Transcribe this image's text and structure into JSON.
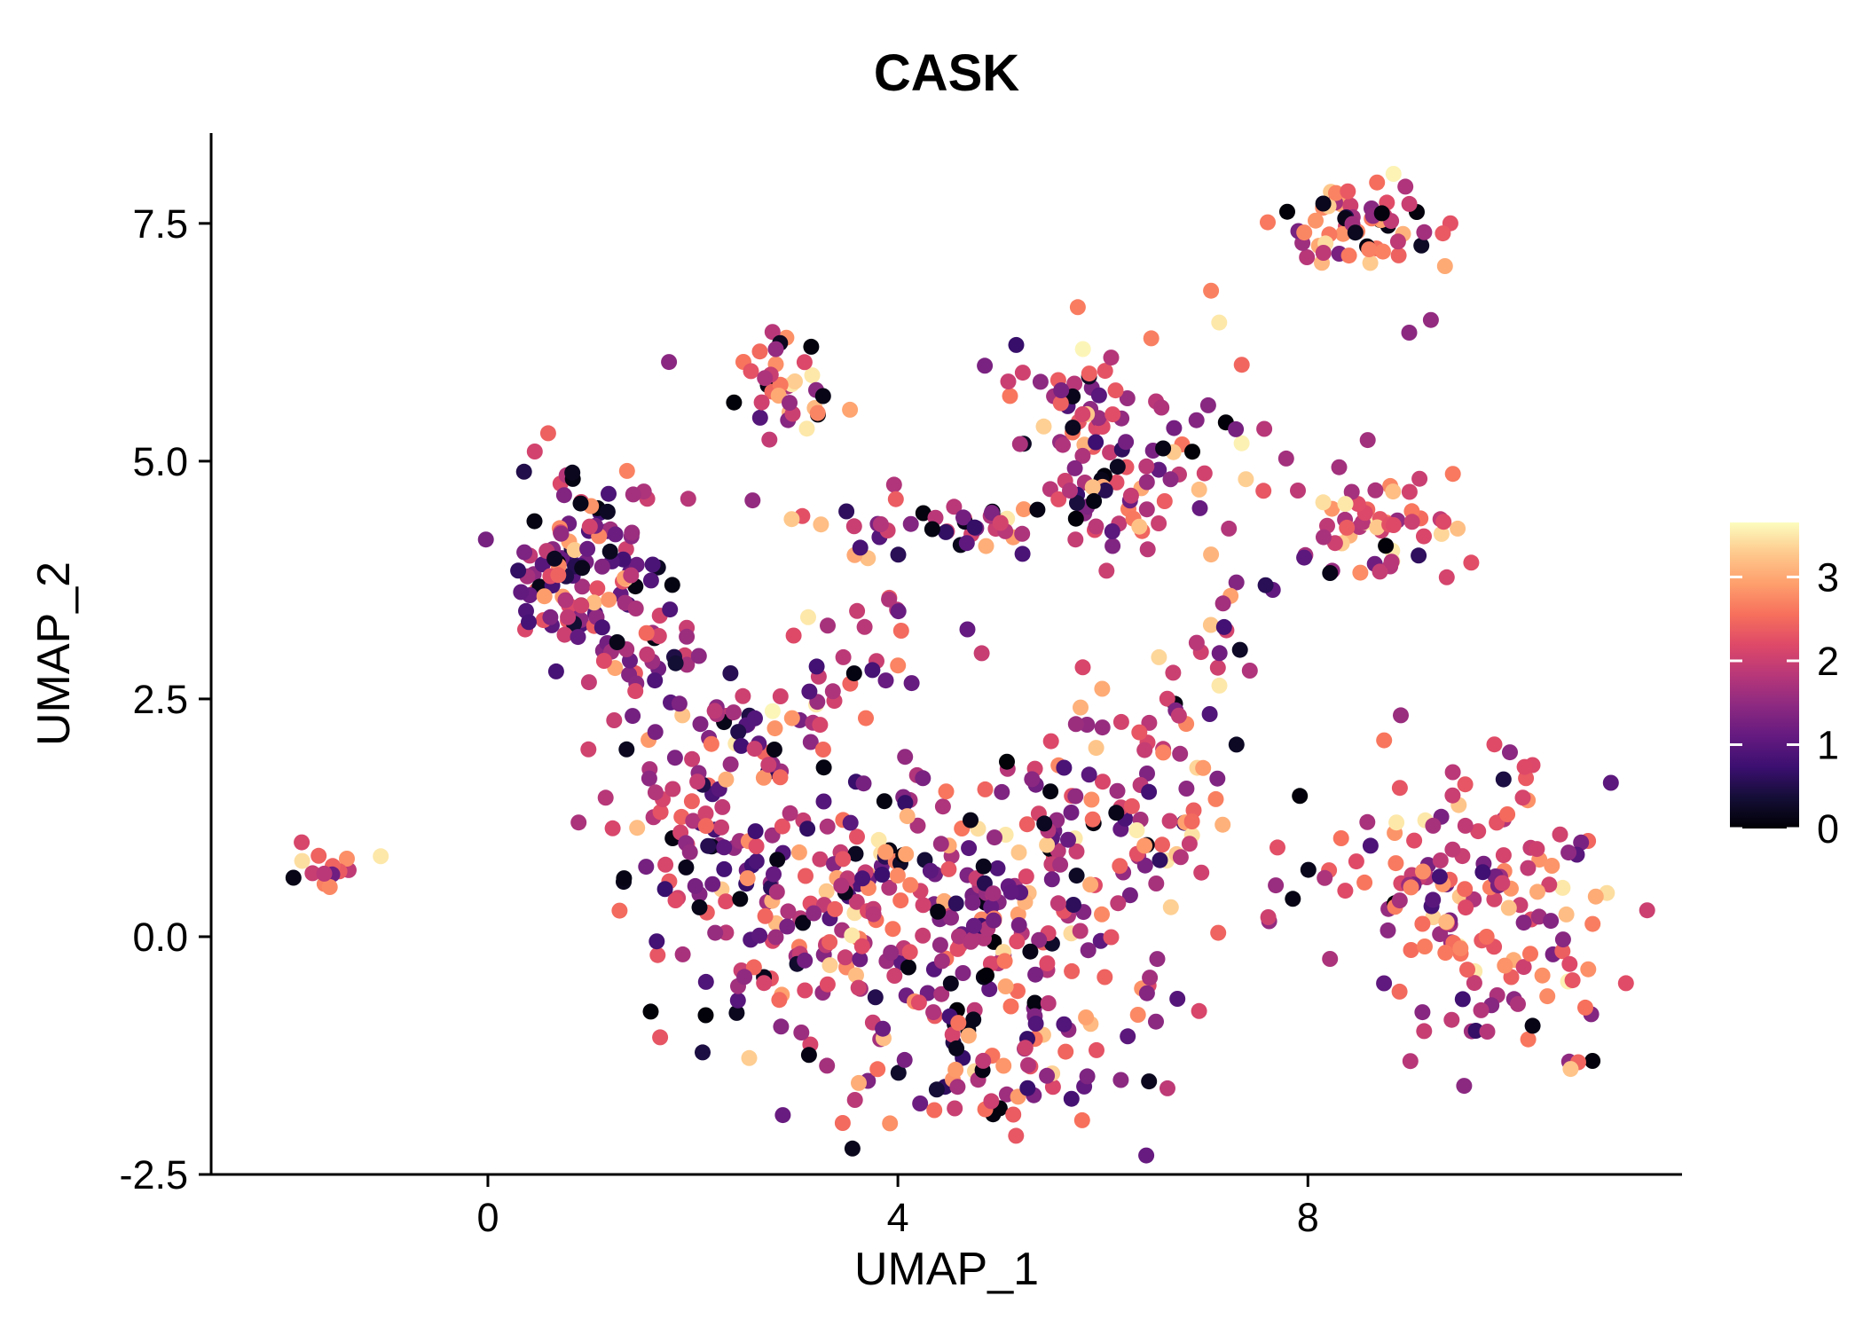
{
  "chart_data": {
    "type": "scatter",
    "title": "CASK",
    "xlabel": "UMAP_1",
    "ylabel": "UMAP_2",
    "x_range": [
      -2.7,
      11.65
    ],
    "y_range": [
      -2.5,
      8.45
    ],
    "x_ticks": [
      0,
      4,
      8
    ],
    "x_tick_labels": [
      "0",
      "4",
      "8"
    ],
    "y_ticks": [
      -2.5,
      0.0,
      2.5,
      5.0,
      7.5
    ],
    "y_tick_labels": [
      "-2.5",
      "0.0",
      "2.5",
      "5.0",
      "7.5"
    ],
    "grid": false,
    "background": "#ffffff",
    "axis_color": "#000000",
    "point_radius": 9,
    "legend": {
      "position": "right",
      "domain": [
        0,
        3.65
      ],
      "ticks": [
        0,
        1,
        2,
        3
      ],
      "tick_labels": [
        "0",
        "1",
        "2",
        "3"
      ]
    },
    "colormap": {
      "name": "magma",
      "stops": [
        {
          "t": 0.0,
          "color": "#000004"
        },
        {
          "t": 0.1,
          "color": "#140e36"
        },
        {
          "t": 0.2,
          "color": "#3b0f70"
        },
        {
          "t": 0.3,
          "color": "#641a80"
        },
        {
          "t": 0.4,
          "color": "#8c2981"
        },
        {
          "t": 0.5,
          "color": "#b73779"
        },
        {
          "t": 0.6,
          "color": "#de4968"
        },
        {
          "t": 0.7,
          "color": "#f7705c"
        },
        {
          "t": 0.8,
          "color": "#fe9f6d"
        },
        {
          "t": 0.9,
          "color": "#fec98d"
        },
        {
          "t": 1.0,
          "color": "#fcfdbf"
        }
      ]
    },
    "seed": 42,
    "clusters": [
      {
        "cx": -1.5,
        "cy": 0.7,
        "sx": 0.22,
        "sy": 0.12,
        "n": 14,
        "expr_mean": 2.1
      },
      {
        "cx": 1.0,
        "cy": 3.9,
        "sx": 0.42,
        "sy": 0.5,
        "n": 115,
        "expr_mean": 1.5
      },
      {
        "cx": 1.4,
        "cy": 2.9,
        "sx": 0.35,
        "sy": 0.35,
        "n": 35,
        "expr_mean": 1.7
      },
      {
        "cx": 2.9,
        "cy": 5.7,
        "sx": 0.28,
        "sy": 0.3,
        "n": 35,
        "expr_mean": 2.2
      },
      {
        "cx": 6.0,
        "cy": 5.1,
        "sx": 0.5,
        "sy": 0.55,
        "n": 105,
        "expr_mean": 1.8
      },
      {
        "cx": 4.8,
        "cy": 4.35,
        "sx": 0.45,
        "sy": 0.18,
        "n": 28,
        "expr_mean": 1.9
      },
      {
        "cx": 3.9,
        "cy": 4.3,
        "sx": 0.6,
        "sy": 0.2,
        "n": 18,
        "expr_mean": 1.6
      },
      {
        "cx": 8.6,
        "cy": 7.5,
        "sx": 0.45,
        "sy": 0.25,
        "n": 60,
        "expr_mean": 2.2
      },
      {
        "cx": 8.7,
        "cy": 4.3,
        "sx": 0.38,
        "sy": 0.35,
        "n": 55,
        "expr_mean": 2.4
      },
      {
        "cx": 9.7,
        "cy": 0.4,
        "sx": 0.7,
        "sy": 0.85,
        "n": 160,
        "expr_mean": 2.2
      },
      {
        "cx": 2.0,
        "cy": 0.9,
        "sx": 0.5,
        "sy": 0.65,
        "n": 85,
        "expr_mean": 1.7
      },
      {
        "cx": 3.0,
        "cy": 0.1,
        "sx": 0.55,
        "sy": 0.7,
        "n": 85,
        "expr_mean": 1.8
      },
      {
        "cx": 4.3,
        "cy": 0.4,
        "sx": 0.65,
        "sy": 0.75,
        "n": 115,
        "expr_mean": 1.9
      },
      {
        "cx": 5.5,
        "cy": 0.1,
        "sx": 0.65,
        "sy": 0.75,
        "n": 125,
        "expr_mean": 1.9
      },
      {
        "cx": 6.3,
        "cy": 1.6,
        "sx": 0.45,
        "sy": 0.55,
        "n": 65,
        "expr_mean": 2.0
      },
      {
        "cx": 4.8,
        "cy": -1.5,
        "sx": 0.75,
        "sy": 0.35,
        "n": 55,
        "expr_mean": 1.9
      },
      {
        "cx": 2.6,
        "cy": 2.1,
        "sx": 0.45,
        "sy": 0.35,
        "n": 35,
        "expr_mean": 1.6
      },
      {
        "cx": 3.6,
        "cy": 3.0,
        "sx": 0.55,
        "sy": 0.3,
        "n": 25,
        "expr_mean": 1.9
      },
      {
        "cx": 7.5,
        "cy": 4.6,
        "sx": 0.35,
        "sy": 0.5,
        "n": 12,
        "expr_mean": 1.7
      },
      {
        "cx": 7.0,
        "cy": 2.7,
        "sx": 0.3,
        "sy": 0.4,
        "n": 15,
        "expr_mean": 2.0
      },
      {
        "cx": 7.9,
        "cy": 0.9,
        "sx": 0.3,
        "sy": 0.4,
        "n": 8,
        "expr_mean": 2.0
      },
      {
        "cx": 7.1,
        "cy": 6.7,
        "sx": 0.15,
        "sy": 0.1,
        "n": 2,
        "expr_mean": 2.6
      },
      {
        "cx": 9.3,
        "cy": 6.4,
        "sx": 0.1,
        "sy": 0.1,
        "n": 2,
        "expr_mean": 1.7
      }
    ]
  }
}
